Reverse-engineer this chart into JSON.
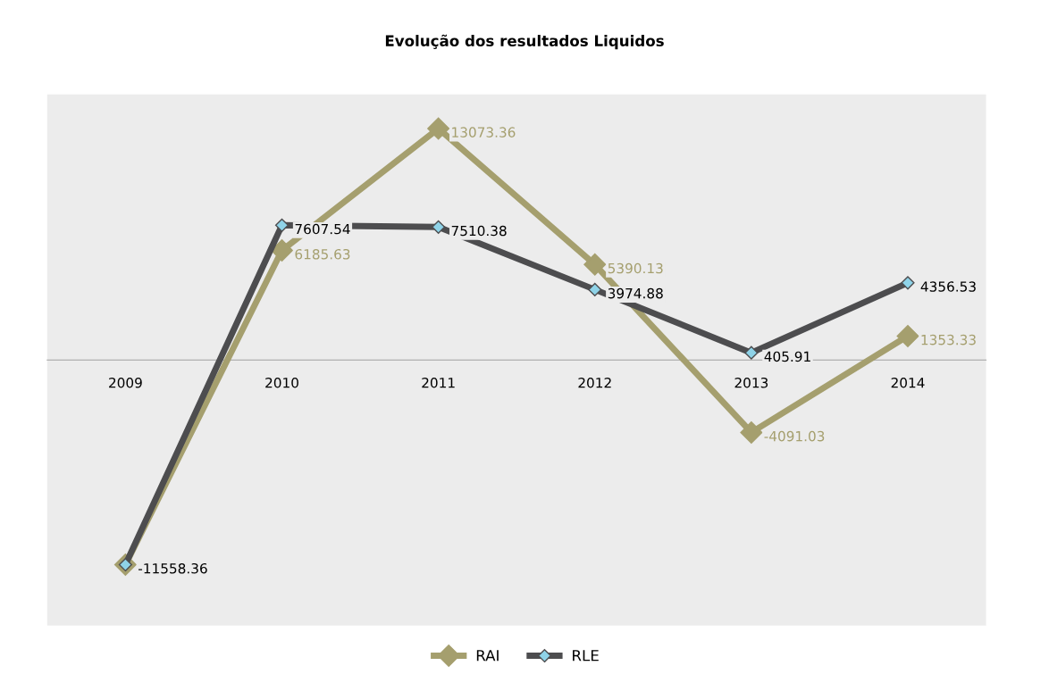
{
  "chart_data": {
    "type": "line",
    "title": "Evolução dos resultados Liquidos",
    "categories": [
      "2009",
      "2010",
      "2011",
      "2012",
      "2013",
      "2014"
    ],
    "series": [
      {
        "name": "RAI",
        "color": "#a59f6e",
        "values": [
          -11558.36,
          6185.63,
          13073.36,
          5390.13,
          -4091.03,
          1353.33
        ],
        "value_labels": [
          null,
          "6185.63",
          "13073.36",
          "5390.13",
          "-4091.03",
          "1353.33"
        ]
      },
      {
        "name": "RLE",
        "color": "#4d4d4f",
        "values": [
          -11558.36,
          7607.54,
          7510.38,
          3974.88,
          405.91,
          4356.53
        ],
        "value_labels": [
          "-11558.36",
          "7607.54",
          "7510.38",
          "3974.88",
          "405.91",
          "4356.53"
        ]
      }
    ],
    "ylim": [
      -15000,
      15000
    ],
    "tick_labels": "x",
    "grid": false,
    "legend": "bottom",
    "marker": "diamond",
    "line_style": "solid"
  }
}
